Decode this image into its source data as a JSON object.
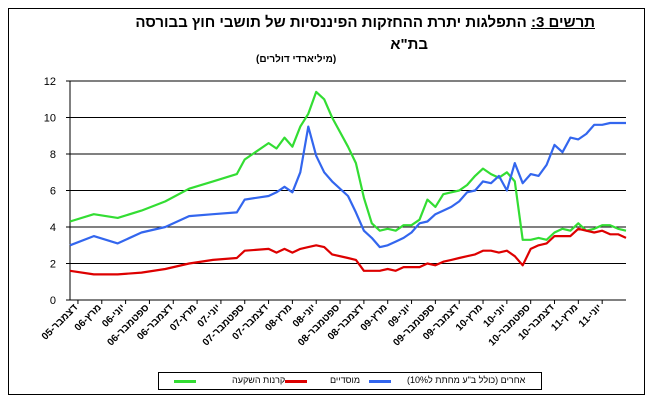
{
  "title": {
    "label": "תרשים 3:",
    "text": "התפלגות יתרת ההחזקות הפיננסיות של תושבי חוץ בבורסה",
    "line2": "בת\"א",
    "subtitle": "(מיליארדי דולרים)"
  },
  "legend": [
    {
      "label": "קרנות השקעה",
      "color": "#33dd33"
    },
    {
      "label": "מוסדיים",
      "color": "#dd0000"
    },
    {
      "label": "אחרים (כולל ב\"ע מחתת ל10%)",
      "color": "#3366ee"
    }
  ],
  "chart_data": {
    "type": "line",
    "title": "התפלגות יתרת ההחזקות הפיננסיות של תושבי חוץ בבורסה בת\"א",
    "ylabel": "",
    "xlabel": "",
    "ylim": [
      0,
      12
    ],
    "yticks": [
      0,
      2,
      4,
      6,
      8,
      10,
      12
    ],
    "grid": true,
    "legend_position": "bottom",
    "x_tick_labels": [
      "דצמבר-05",
      "מרץ-06",
      "יוני-06",
      "ספטמבר-06",
      "דצמבר-06",
      "מרץ-07",
      "יוני-07",
      "ספטמבר-07",
      "דצמבר-07",
      "מרץ-08",
      "יוני-08",
      "ספטמבר-08",
      "דצמבר-08",
      "מרץ-09",
      "יוני-09",
      "ספטמבר-09",
      "דצמבר-09",
      "מרץ-10",
      "יוני-10",
      "ספטמבר-10",
      "דצמבר-10",
      "מרץ-11",
      "יוני-11"
    ],
    "n_points": 67,
    "series": [
      {
        "name": "קרנות השקעה",
        "color": "#33dd33",
        "points": [
          [
            0,
            4.3
          ],
          [
            3,
            4.7
          ],
          [
            6,
            4.5
          ],
          [
            9,
            4.9
          ],
          [
            12,
            5.4
          ],
          [
            15,
            6.1
          ],
          [
            18,
            6.5
          ],
          [
            21,
            6.9
          ],
          [
            22,
            7.7
          ],
          [
            25,
            8.6
          ],
          [
            26,
            8.3
          ],
          [
            27,
            8.9
          ],
          [
            28,
            8.4
          ],
          [
            29,
            9.5
          ],
          [
            30,
            10.2
          ],
          [
            31,
            11.4
          ],
          [
            32,
            11.0
          ],
          [
            33,
            10.0
          ],
          [
            35,
            8.4
          ],
          [
            36,
            7.5
          ],
          [
            37,
            5.6
          ],
          [
            38,
            4.2
          ],
          [
            39,
            3.8
          ],
          [
            40,
            3.9
          ],
          [
            41,
            3.8
          ],
          [
            42,
            4.1
          ],
          [
            43,
            4.1
          ],
          [
            44,
            4.4
          ],
          [
            45,
            5.5
          ],
          [
            46,
            5.1
          ],
          [
            47,
            5.8
          ],
          [
            48,
            5.9
          ],
          [
            49,
            6.0
          ],
          [
            50,
            6.3
          ],
          [
            51,
            6.8
          ],
          [
            52,
            7.2
          ],
          [
            53,
            6.9
          ],
          [
            54,
            6.7
          ],
          [
            55,
            7.0
          ],
          [
            56,
            6.5
          ],
          [
            57,
            3.3
          ],
          [
            58,
            3.3
          ],
          [
            59,
            3.4
          ],
          [
            60,
            3.3
          ],
          [
            61,
            3.7
          ],
          [
            62,
            3.9
          ],
          [
            63,
            3.8
          ],
          [
            64,
            4.2
          ],
          [
            65,
            3.8
          ],
          [
            66,
            3.9
          ],
          [
            67,
            4.1
          ],
          [
            68,
            4.1
          ],
          [
            69,
            3.9
          ],
          [
            70,
            3.8
          ]
        ]
      },
      {
        "name": "מוסדיים",
        "color": "#dd0000",
        "points": [
          [
            0,
            1.6
          ],
          [
            3,
            1.4
          ],
          [
            6,
            1.4
          ],
          [
            9,
            1.5
          ],
          [
            12,
            1.7
          ],
          [
            15,
            2.0
          ],
          [
            18,
            2.2
          ],
          [
            21,
            2.3
          ],
          [
            22,
            2.7
          ],
          [
            25,
            2.8
          ],
          [
            26,
            2.6
          ],
          [
            27,
            2.8
          ],
          [
            28,
            2.6
          ],
          [
            29,
            2.8
          ],
          [
            30,
            2.9
          ],
          [
            31,
            3.0
          ],
          [
            32,
            2.9
          ],
          [
            33,
            2.5
          ],
          [
            35,
            2.3
          ],
          [
            36,
            2.2
          ],
          [
            37,
            1.6
          ],
          [
            38,
            1.6
          ],
          [
            39,
            1.6
          ],
          [
            40,
            1.7
          ],
          [
            41,
            1.6
          ],
          [
            42,
            1.8
          ],
          [
            43,
            1.8
          ],
          [
            44,
            1.8
          ],
          [
            45,
            2.0
          ],
          [
            46,
            1.9
          ],
          [
            47,
            2.1
          ],
          [
            48,
            2.2
          ],
          [
            49,
            2.3
          ],
          [
            50,
            2.4
          ],
          [
            51,
            2.5
          ],
          [
            52,
            2.7
          ],
          [
            53,
            2.7
          ],
          [
            54,
            2.6
          ],
          [
            55,
            2.7
          ],
          [
            56,
            2.4
          ],
          [
            57,
            1.9
          ],
          [
            58,
            2.8
          ],
          [
            59,
            3.0
          ],
          [
            60,
            3.1
          ],
          [
            61,
            3.5
          ],
          [
            62,
            3.5
          ],
          [
            63,
            3.5
          ],
          [
            64,
            3.9
          ],
          [
            65,
            3.8
          ],
          [
            66,
            3.7
          ],
          [
            67,
            3.8
          ],
          [
            68,
            3.6
          ],
          [
            69,
            3.6
          ],
          [
            70,
            3.4
          ]
        ]
      },
      {
        "name": "אחרים (כולל ב\"ע מחתת ל10%)",
        "color": "#3366ee",
        "points": [
          [
            0,
            3.0
          ],
          [
            3,
            3.5
          ],
          [
            6,
            3.1
          ],
          [
            9,
            3.7
          ],
          [
            12,
            4.0
          ],
          [
            15,
            4.6
          ],
          [
            18,
            4.7
          ],
          [
            21,
            4.8
          ],
          [
            22,
            5.5
          ],
          [
            25,
            5.7
          ],
          [
            26,
            5.9
          ],
          [
            27,
            6.2
          ],
          [
            28,
            5.9
          ],
          [
            29,
            7.0
          ],
          [
            30,
            9.5
          ],
          [
            31,
            7.9
          ],
          [
            32,
            7.0
          ],
          [
            33,
            6.5
          ],
          [
            35,
            5.7
          ],
          [
            36,
            4.8
          ],
          [
            37,
            3.8
          ],
          [
            38,
            3.4
          ],
          [
            39,
            2.9
          ],
          [
            40,
            3.0
          ],
          [
            41,
            3.2
          ],
          [
            42,
            3.4
          ],
          [
            43,
            3.7
          ],
          [
            44,
            4.2
          ],
          [
            45,
            4.3
          ],
          [
            46,
            4.7
          ],
          [
            47,
            4.9
          ],
          [
            48,
            5.1
          ],
          [
            49,
            5.4
          ],
          [
            50,
            5.9
          ],
          [
            51,
            6.0
          ],
          [
            52,
            6.5
          ],
          [
            53,
            6.4
          ],
          [
            54,
            6.8
          ],
          [
            55,
            6.0
          ],
          [
            56,
            7.5
          ],
          [
            57,
            6.4
          ],
          [
            58,
            6.9
          ],
          [
            59,
            6.8
          ],
          [
            60,
            7.4
          ],
          [
            61,
            8.5
          ],
          [
            62,
            8.1
          ],
          [
            63,
            8.9
          ],
          [
            64,
            8.8
          ],
          [
            65,
            9.1
          ],
          [
            66,
            9.6
          ],
          [
            67,
            9.6
          ],
          [
            68,
            9.7
          ],
          [
            69,
            9.7
          ],
          [
            70,
            9.7
          ]
        ]
      }
    ]
  }
}
